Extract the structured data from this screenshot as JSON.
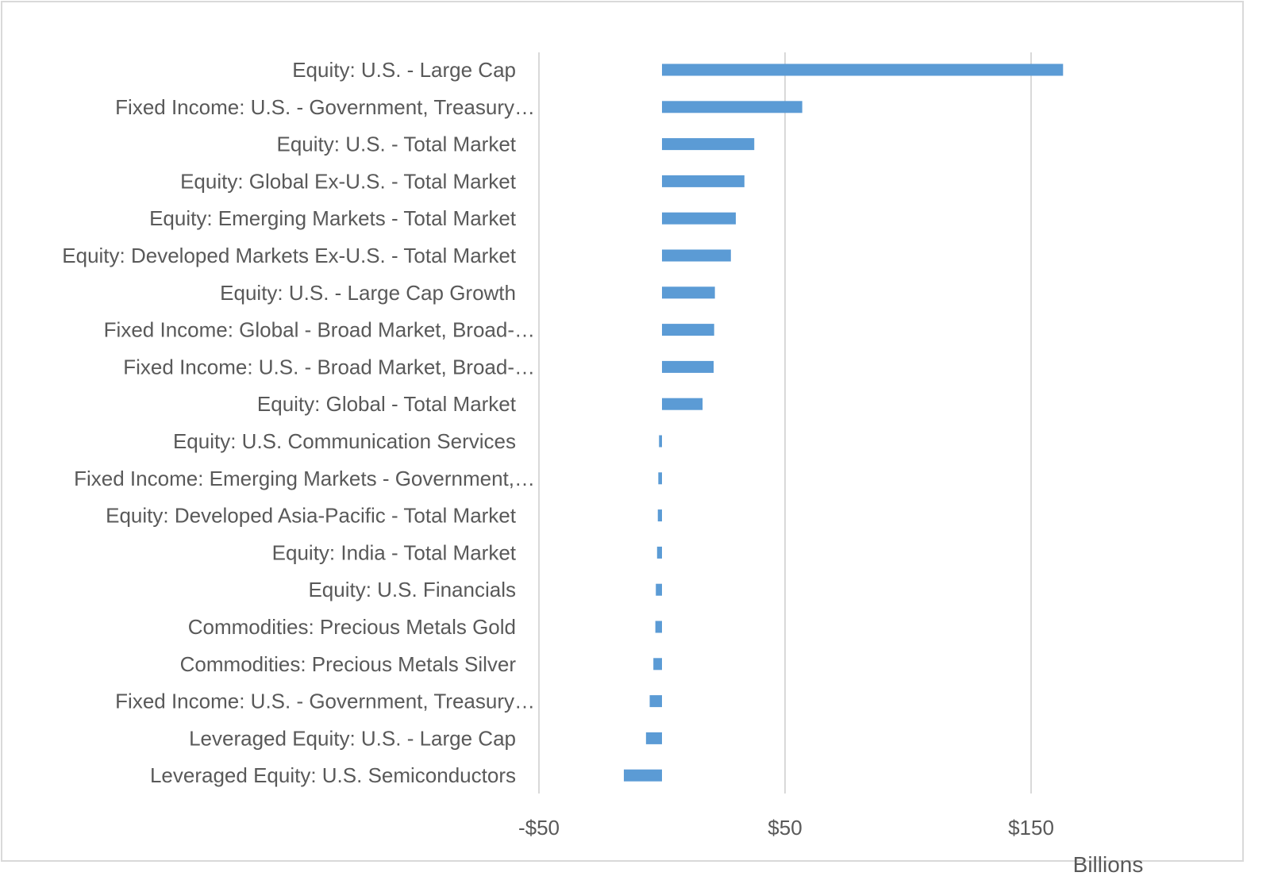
{
  "chart_data": {
    "type": "bar",
    "orientation": "horizontal",
    "categories": [
      "Equity: U.S. - Large Cap",
      "Fixed Income: U.S. - Government, Treasury…",
      "Equity: U.S. - Total Market",
      "Equity: Global Ex-U.S. - Total Market",
      "Equity: Emerging Markets - Total Market",
      "Equity: Developed Markets Ex-U.S. - Total Market",
      "Equity: U.S. - Large Cap Growth",
      "Fixed Income: Global - Broad Market, Broad-…",
      "Fixed Income: U.S. - Broad Market, Broad-…",
      "Equity: Global - Total Market",
      "Equity: U.S. Communication Services",
      "Fixed Income: Emerging Markets - Government,…",
      "Equity: Developed Asia-Pacific - Total Market",
      "Equity: India - Total Market",
      "Equity: U.S. Financials",
      "Commodities: Precious Metals Gold",
      "Commodities: Precious Metals Silver",
      "Fixed Income: U.S. - Government, Treasury…",
      "Leveraged Equity: U.S. - Large Cap",
      "Leveraged Equity: U.S. Semiconductors"
    ],
    "values": [
      163,
      57,
      37.5,
      33.5,
      30,
      28,
      21.5,
      21.2,
      21,
      16.5,
      -1.2,
      -1.5,
      -1.7,
      -2,
      -2.5,
      -2.7,
      -3.5,
      -5,
      -6.5,
      -15.5
    ],
    "xlim": [
      -50,
      200
    ],
    "ticks": [
      {
        "value": -50,
        "label": "-$50"
      },
      {
        "value": 50,
        "label": "$50"
      },
      {
        "value": 150,
        "label": "$150"
      }
    ],
    "gridlines": [
      -50,
      50,
      150
    ],
    "unit_label": "Billions",
    "bar_color": "#5b9bd5",
    "grid_color": "#d9d9d9",
    "title": "",
    "legend": "none"
  }
}
